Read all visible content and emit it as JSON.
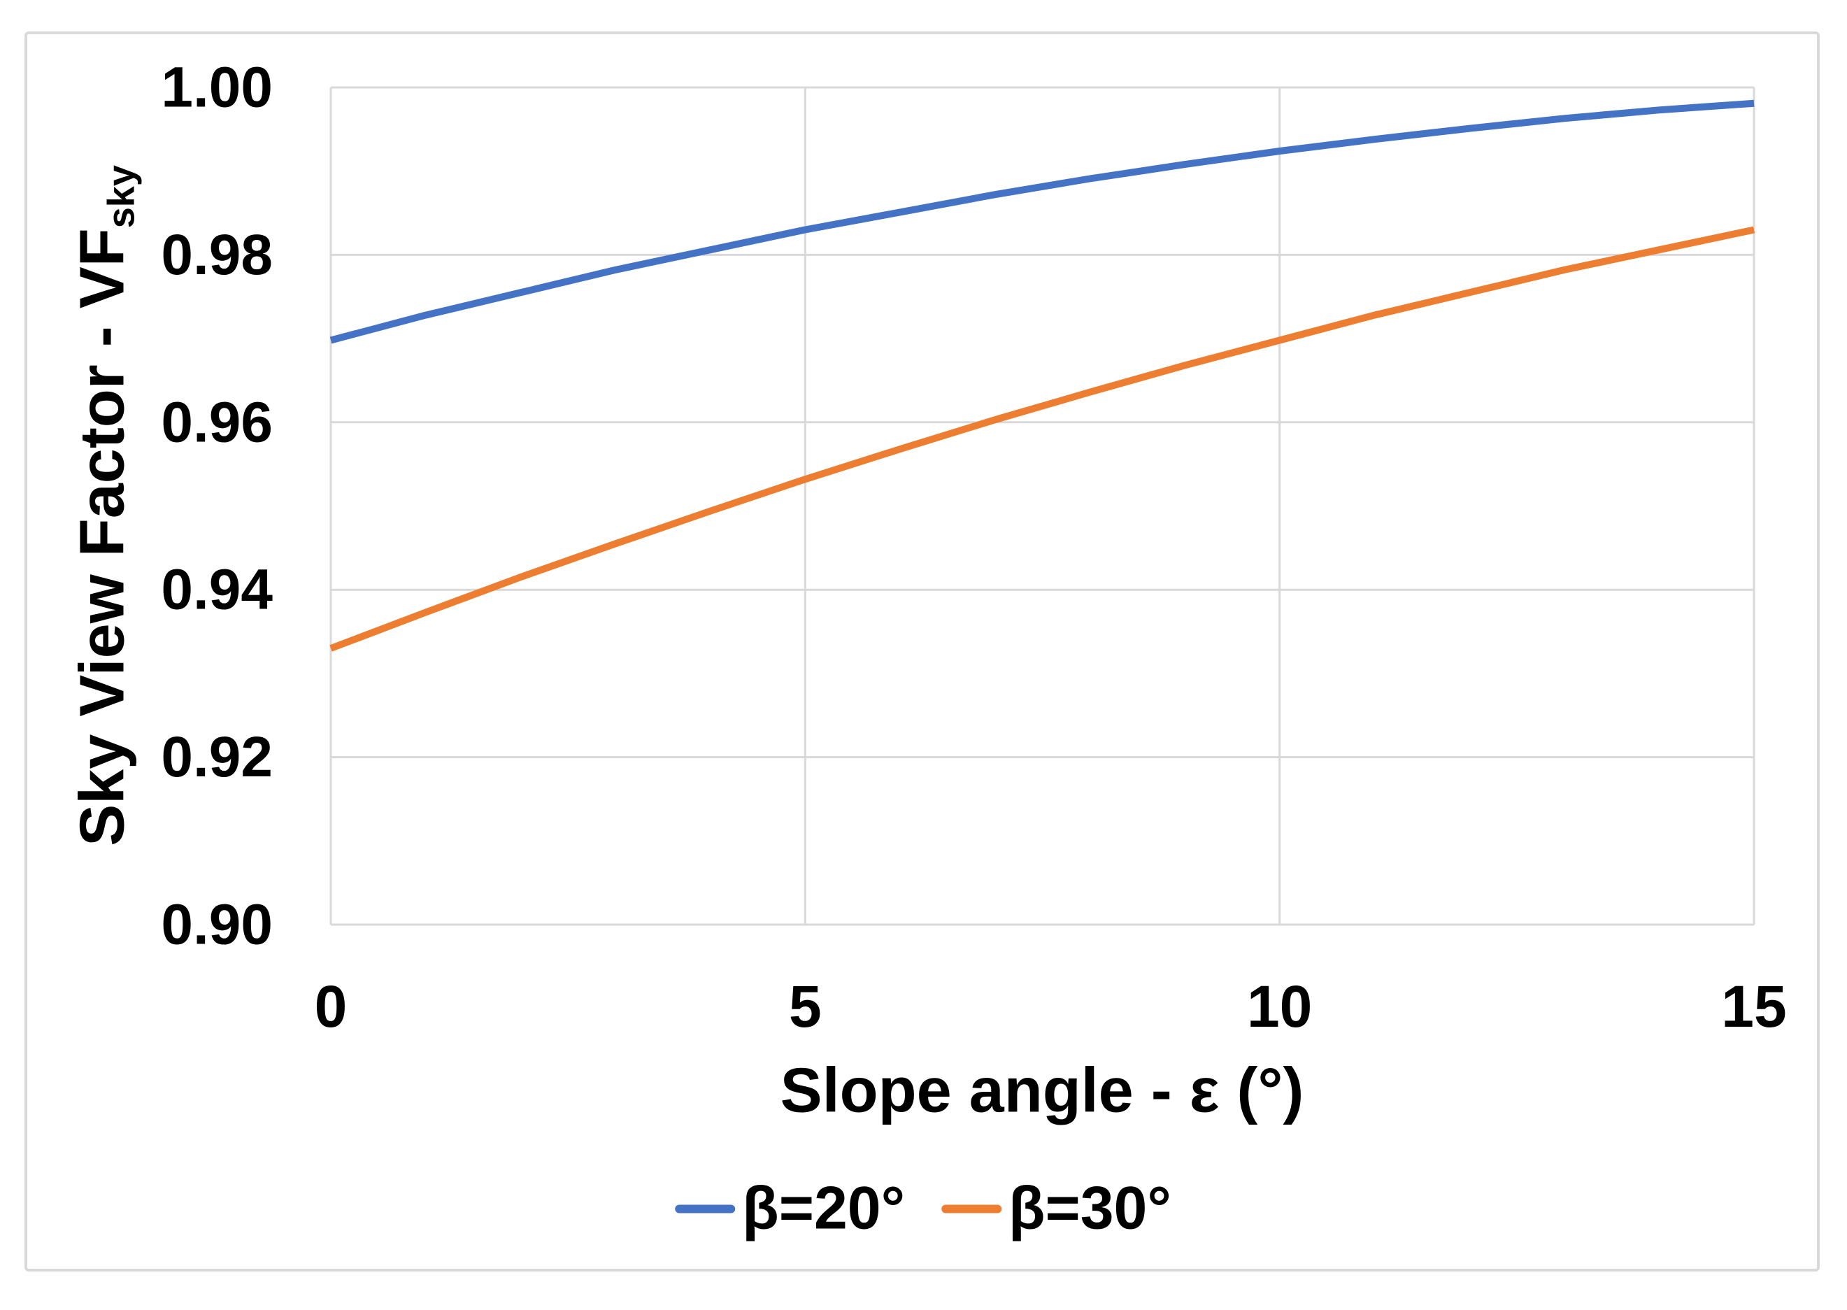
{
  "chart_data": {
    "type": "line",
    "title": "",
    "xlabel": "Slope angle - ε (°)",
    "ylabel_main": "Sky View Factor - VF",
    "ylabel_sub": "sky",
    "xlim": [
      0,
      15
    ],
    "ylim": [
      0.9,
      1.0
    ],
    "x_ticks": [
      "0",
      "5",
      "10",
      "15"
    ],
    "y_ticks": [
      "1.00",
      "0.98",
      "0.96",
      "0.94",
      "0.92",
      "0.90"
    ],
    "grid": true,
    "legend_position": "bottom-center",
    "grid_color": "#d9d9d9",
    "x": [
      0,
      1,
      2,
      3,
      4,
      5,
      6,
      7,
      8,
      9,
      10,
      11,
      12,
      13,
      14,
      15
    ],
    "series": [
      {
        "name": "β=20°",
        "color": "#4472C4",
        "values": [
          0.9698,
          0.9728,
          0.9755,
          0.9782,
          0.9806,
          0.983,
          0.9851,
          0.9872,
          0.9891,
          0.9908,
          0.9924,
          0.9938,
          0.9951,
          0.9963,
          0.9973,
          0.9981
        ]
      },
      {
        "name": "β=30°",
        "color": "#ED7D31",
        "values": [
          0.933,
          0.9373,
          0.9415,
          0.9455,
          0.9494,
          0.9532,
          0.9568,
          0.9603,
          0.9636,
          0.9668,
          0.9698,
          0.9728,
          0.9755,
          0.9782,
          0.9806,
          0.983
        ]
      }
    ]
  }
}
